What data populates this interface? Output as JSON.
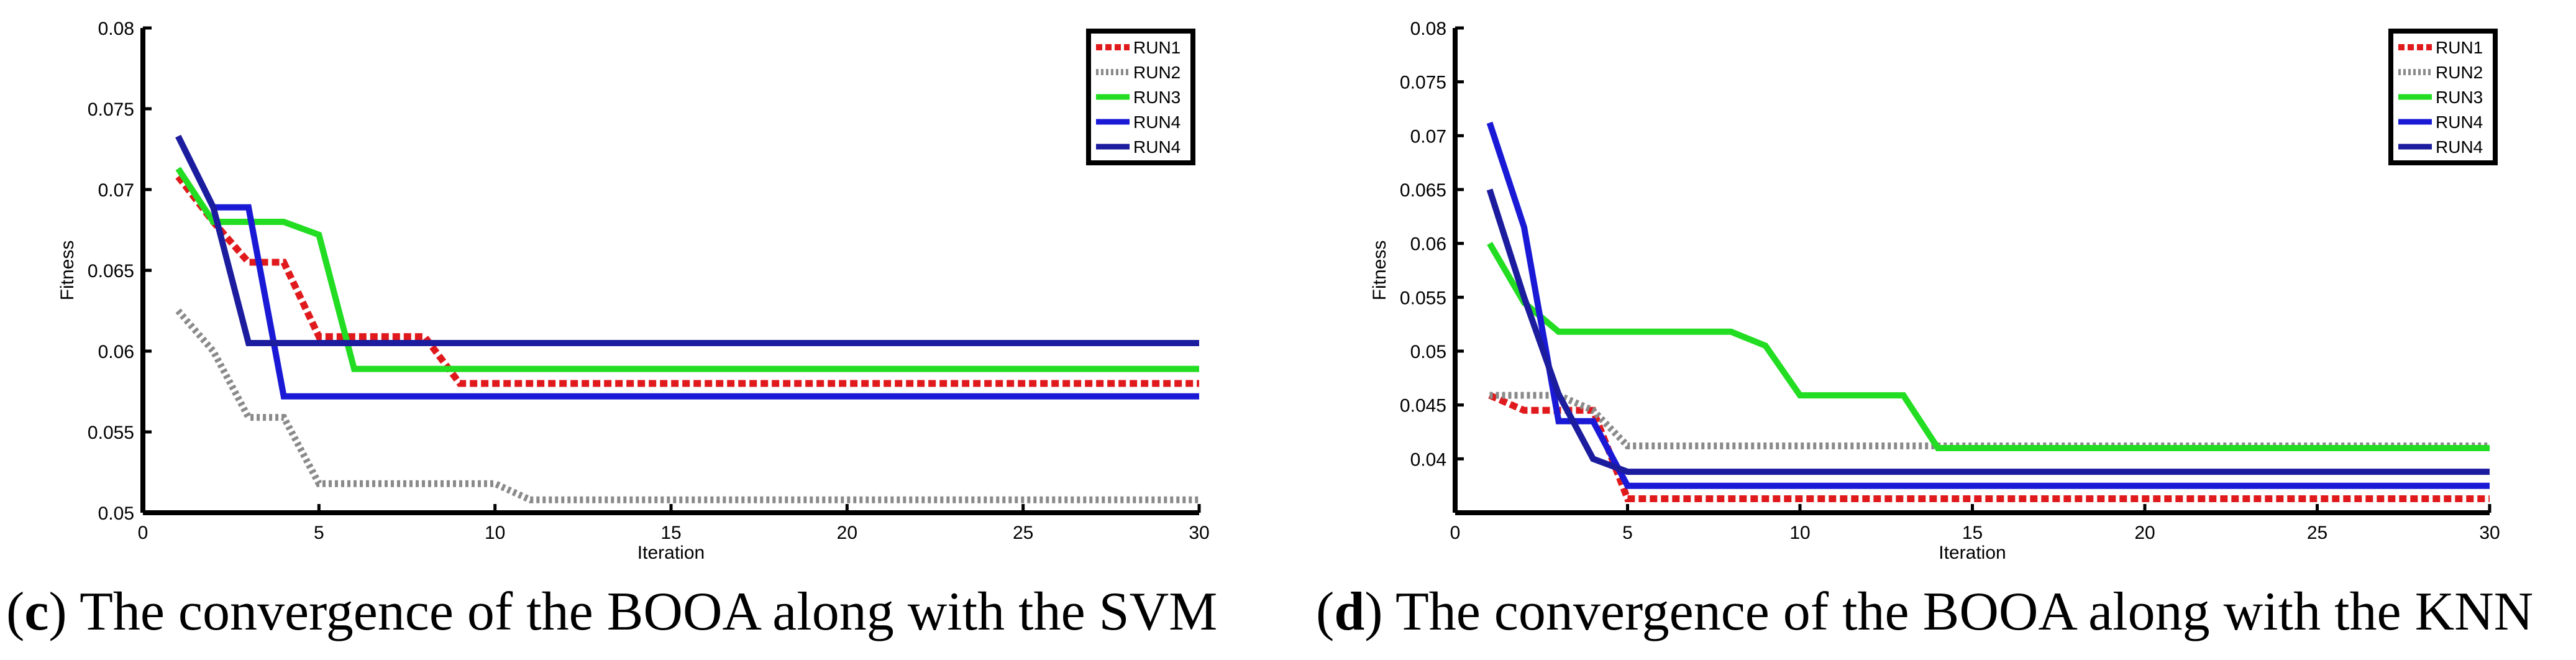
{
  "charts": [
    {
      "caption_letter": "c",
      "caption_text": "The convergence of the BOOA along with the SVM",
      "chart_data": {
        "type": "line",
        "title": "",
        "xlabel": "Iteration",
        "ylabel": "Fitness",
        "xlim": [
          0,
          30
        ],
        "ylim": [
          0.05,
          0.08
        ],
        "xticks": [
          0,
          5,
          10,
          15,
          20,
          25,
          30
        ],
        "xtick_labels": [
          "0",
          "5",
          "10",
          "15",
          "20",
          "25",
          "30"
        ],
        "yticks": [
          0.05,
          0.055,
          0.06,
          0.065,
          0.07,
          0.075,
          0.08
        ],
        "ytick_labels": [
          "0.05",
          "0.055",
          "0.06",
          "0.065",
          "0.07",
          "0.075",
          "0.08"
        ],
        "grid": false,
        "legend_position": "top-right",
        "series": [
          {
            "name": "RUN1",
            "color": "#e0191c",
            "style": "dotted",
            "points": [
              [
                1,
                0.0708
              ],
              [
                2,
                0.068
              ],
              [
                3,
                0.0655
              ],
              [
                4,
                0.0655
              ],
              [
                5,
                0.0609
              ],
              [
                8,
                0.0609
              ],
              [
                9,
                0.058
              ],
              [
                30,
                0.058
              ]
            ]
          },
          {
            "name": "RUN2",
            "color": "#8a8a8a",
            "style": "dotted",
            "points": [
              [
                1,
                0.0625
              ],
              [
                2,
                0.06
              ],
              [
                3,
                0.0559
              ],
              [
                4,
                0.0559
              ],
              [
                5,
                0.0518
              ],
              [
                10,
                0.0518
              ],
              [
                11,
                0.0508
              ],
              [
                30,
                0.0508
              ]
            ]
          },
          {
            "name": "RUN3",
            "color": "#22dd22",
            "style": "solid",
            "points": [
              [
                1,
                0.0713
              ],
              [
                2,
                0.068
              ],
              [
                3,
                0.068
              ],
              [
                4,
                0.068
              ],
              [
                5,
                0.0672
              ],
              [
                6,
                0.0589
              ],
              [
                30,
                0.0589
              ]
            ]
          },
          {
            "name": "RUN4",
            "color": "#1a1ad6",
            "style": "solid",
            "points": [
              [
                1,
                0.0733
              ],
              [
                2,
                0.0689
              ],
              [
                3,
                0.0689
              ],
              [
                4,
                0.0572
              ],
              [
                30,
                0.0572
              ]
            ]
          },
          {
            "name": "RUN4",
            "color": "#1c1c9e",
            "style": "solid",
            "points": [
              [
                1,
                0.0733
              ],
              [
                2,
                0.0689
              ],
              [
                3,
                0.0605
              ],
              [
                30,
                0.0605
              ]
            ]
          }
        ]
      }
    },
    {
      "caption_letter": "d",
      "caption_text": "The convergence of the BOOA along with the KNN",
      "chart_data": {
        "type": "line",
        "title": "",
        "xlabel": "Iteration",
        "ylabel": "Fitness",
        "xlim": [
          0,
          30
        ],
        "ylim": [
          0.035,
          0.08
        ],
        "xticks": [
          0,
          5,
          10,
          15,
          20,
          25,
          30
        ],
        "xtick_labels": [
          "0",
          "5",
          "10",
          "15",
          "20",
          "25",
          "30"
        ],
        "yticks": [
          0.04,
          0.045,
          0.05,
          0.055,
          0.06,
          0.065,
          0.07,
          0.075,
          0.08
        ],
        "ytick_labels": [
          "0.04",
          "0.045",
          "0.05",
          "0.055",
          "0.06",
          "0.065",
          "0.07",
          "0.075",
          "0.08"
        ],
        "grid": false,
        "legend_position": "top-right",
        "series": [
          {
            "name": "RUN1",
            "color": "#e0191c",
            "style": "dotted",
            "points": [
              [
                1,
                0.0459
              ],
              [
                2,
                0.0445
              ],
              [
                3,
                0.0445
              ],
              [
                4,
                0.0445
              ],
              [
                5,
                0.0363
              ],
              [
                30,
                0.0363
              ]
            ]
          },
          {
            "name": "RUN2",
            "color": "#8a8a8a",
            "style": "dotted",
            "points": [
              [
                1,
                0.0459
              ],
              [
                3,
                0.0459
              ],
              [
                4,
                0.0445
              ],
              [
                5,
                0.0412
              ],
              [
                30,
                0.0412
              ]
            ]
          },
          {
            "name": "RUN3",
            "color": "#22dd22",
            "style": "solid",
            "points": [
              [
                1,
                0.06
              ],
              [
                2,
                0.0545
              ],
              [
                3,
                0.0518
              ],
              [
                8,
                0.0518
              ],
              [
                9,
                0.0505
              ],
              [
                10,
                0.0459
              ],
              [
                13,
                0.0459
              ],
              [
                14,
                0.041
              ],
              [
                30,
                0.041
              ]
            ]
          },
          {
            "name": "RUN4",
            "color": "#1a1ad6",
            "style": "solid",
            "points": [
              [
                1,
                0.0712
              ],
              [
                2,
                0.0615
              ],
              [
                3,
                0.0435
              ],
              [
                4,
                0.0435
              ],
              [
                5,
                0.0375
              ],
              [
                30,
                0.0375
              ]
            ]
          },
          {
            "name": "RUN4",
            "color": "#1c1c9e",
            "style": "solid",
            "points": [
              [
                1,
                0.065
              ],
              [
                2,
                0.055
              ],
              [
                3,
                0.046
              ],
              [
                4,
                0.04
              ],
              [
                5,
                0.0388
              ],
              [
                30,
                0.0388
              ]
            ]
          }
        ]
      }
    }
  ]
}
